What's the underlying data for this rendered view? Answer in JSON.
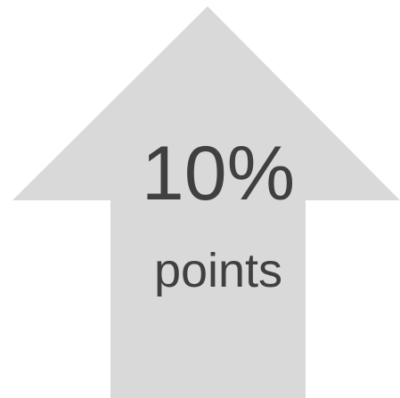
{
  "headline": "10%",
  "subline": "points"
}
